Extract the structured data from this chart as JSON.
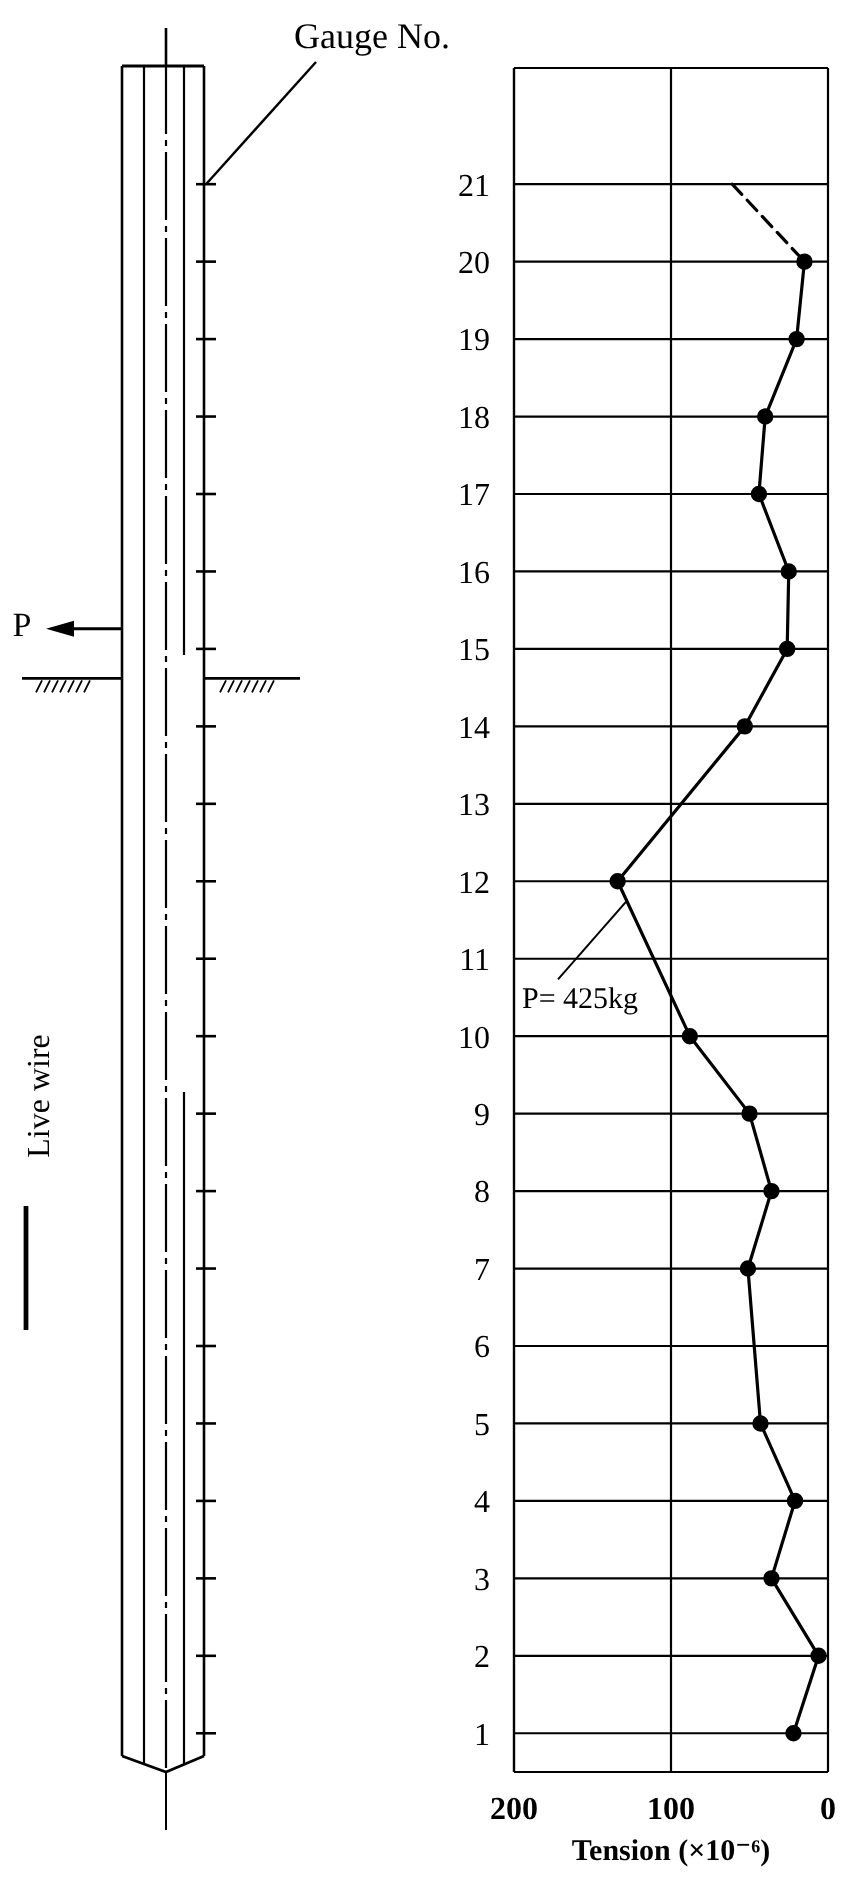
{
  "chart_data": {
    "type": "line",
    "series": [
      {
        "color": "#000000",
        "marker": "circle",
        "x": [
          15,
          20,
          40,
          44,
          25,
          26,
          53,
          134,
          88,
          50,
          36,
          51,
          43,
          21,
          36,
          6,
          22
        ],
        "values": [
          20,
          19,
          18,
          17,
          16,
          15,
          14,
          12,
          10,
          9,
          8,
          7,
          5,
          4,
          3,
          2,
          1
        ]
      },
      {
        "color": "#000000",
        "marker": "none",
        "line_style": "dashed",
        "x": [
          61,
          15
        ],
        "values": [
          21,
          20
        ]
      }
    ],
    "xlim": [
      200,
      0
    ],
    "xticks": [
      200,
      100,
      0
    ],
    "ylim": [
      0.5,
      22.5
    ],
    "yticks": [
      1,
      2,
      3,
      4,
      5,
      6,
      7,
      8,
      9,
      10,
      11,
      12,
      13,
      14,
      15,
      16,
      17,
      18,
      19,
      20,
      21
    ],
    "xlabel": "Tension (×10⁻⁶)",
    "ylabel": "Gauge No.",
    "grid": true,
    "annotations": [
      "P",
      "Live wire",
      "P= 425kg"
    ]
  }
}
